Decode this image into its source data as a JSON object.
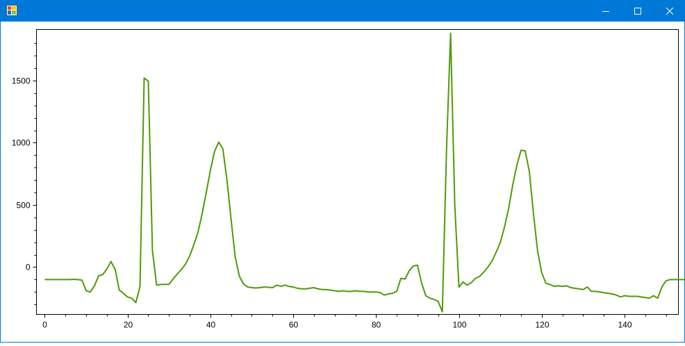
{
  "window": {
    "title": "",
    "titlebar_color": "#0078d7",
    "controls": [
      "minimize-icon",
      "maximize-icon",
      "close-icon"
    ]
  },
  "chart_data": {
    "type": "line",
    "title": "",
    "xlabel": "",
    "ylabel": "",
    "xlim": [
      -2,
      153
    ],
    "ylim": [
      -380,
      1910
    ],
    "x_ticks": [
      0,
      20,
      40,
      60,
      80,
      100,
      120,
      140
    ],
    "y_ticks": [
      0,
      500,
      1000,
      1500
    ],
    "grid": false,
    "legend": "none",
    "series": [
      {
        "color": "#4e9a06",
        "values": [
          -100,
          -100,
          -100,
          -100,
          -100,
          -100,
          -100,
          -98,
          -100,
          -105,
          -190,
          -200,
          -150,
          -70,
          -60,
          -15,
          45,
          -20,
          -185,
          -210,
          -240,
          -250,
          -285,
          -155,
          1520,
          1495,
          135,
          -145,
          -140,
          -138,
          -138,
          -95,
          -55,
          -20,
          25,
          90,
          180,
          280,
          430,
          600,
          780,
          930,
          1005,
          950,
          700,
          380,
          80,
          -75,
          -135,
          -160,
          -165,
          -168,
          -165,
          -160,
          -162,
          -165,
          -145,
          -155,
          -145,
          -155,
          -160,
          -170,
          -175,
          -175,
          -170,
          -165,
          -175,
          -180,
          -180,
          -185,
          -190,
          -195,
          -190,
          -195,
          -195,
          -190,
          -195,
          -195,
          -200,
          -200,
          -200,
          -205,
          -225,
          -215,
          -210,
          -195,
          -90,
          -95,
          -30,
          10,
          15,
          -130,
          -230,
          -250,
          -260,
          -275,
          -360,
          940,
          1880,
          500,
          -160,
          -120,
          -145,
          -125,
          -90,
          -75,
          -40,
          0,
          50,
          120,
          200,
          320,
          470,
          660,
          820,
          940,
          935,
          770,
          430,
          130,
          -45,
          -130,
          -140,
          -155,
          -150,
          -155,
          -150,
          -165,
          -170,
          -175,
          -180,
          -160,
          -195,
          -195,
          -200,
          -205,
          -210,
          -215,
          -225,
          -240,
          -230,
          -235,
          -235,
          -235,
          -240,
          -245,
          -250,
          -230,
          -250,
          -160,
          -110,
          -100,
          -100,
          -100,
          -100,
          -100,
          -100,
          -100
        ]
      }
    ]
  }
}
